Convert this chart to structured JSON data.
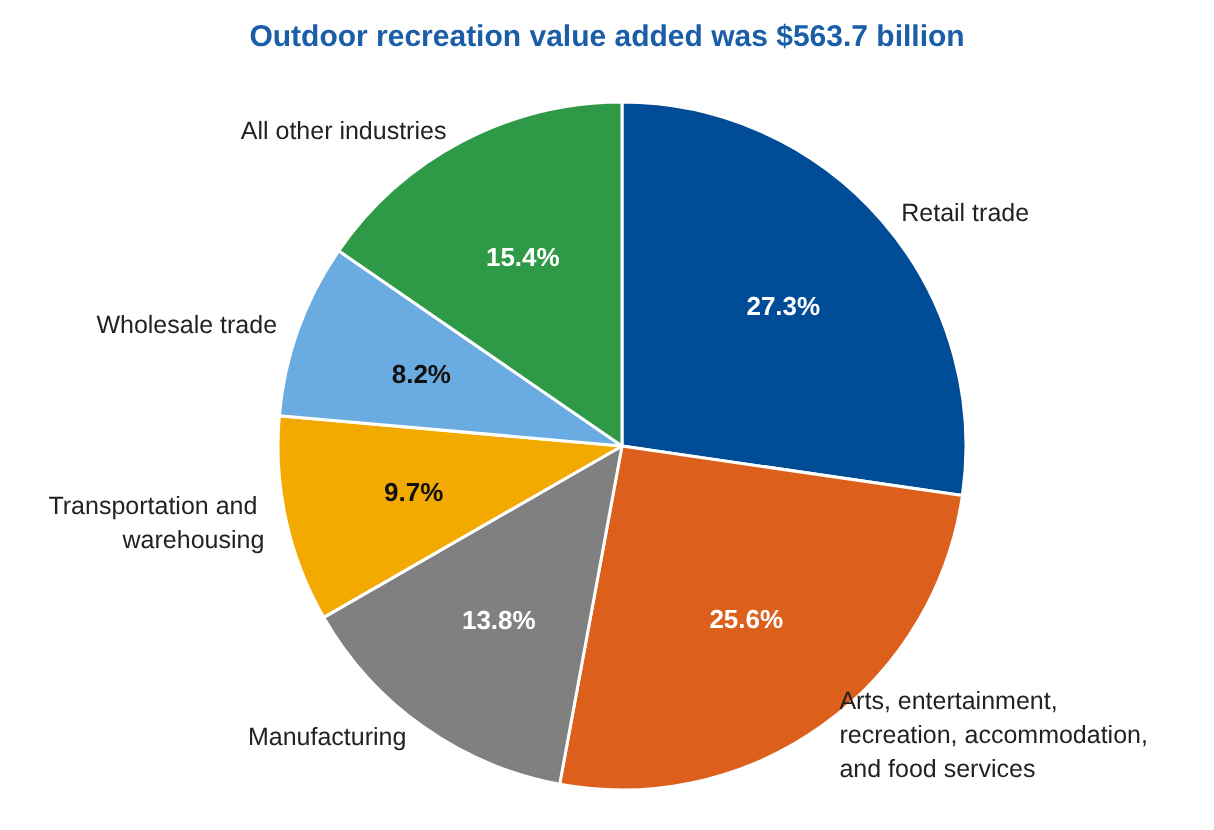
{
  "chart_data": {
    "type": "pie",
    "title": "Outdoor recreation value added was $563.7 billion",
    "categories": [
      "Retail trade",
      "Arts, entertainment, recreation, accommodation, and food services",
      "Manufacturing",
      "Transportation and warehousing",
      "Wholesale trade",
      "All other industries"
    ],
    "values": [
      27.3,
      25.6,
      13.8,
      9.7,
      8.2,
      15.4
    ],
    "value_labels": [
      "27.3%",
      "25.6%",
      "13.8%",
      "9.7%",
      "8.2%",
      "15.4%"
    ],
    "colors": [
      "#004c97",
      "#dc5f1c",
      "#808080",
      "#f2a900",
      "#6aace2",
      "#2e9a47"
    ],
    "legend": false
  }
}
